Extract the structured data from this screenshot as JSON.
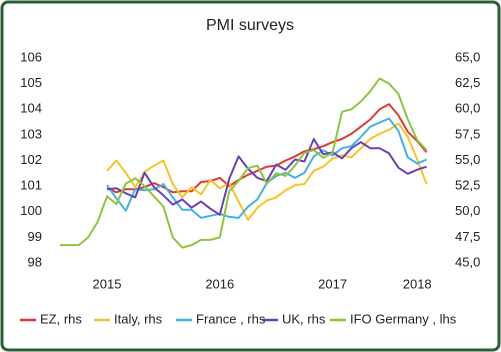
{
  "chart_data": {
    "type": "line",
    "title": "PMI surveys",
    "categories": [
      null,
      null,
      null,
      null,
      null,
      "2015",
      null,
      null,
      null,
      null,
      null,
      null,
      null,
      null,
      null,
      null,
      null,
      "2016",
      null,
      null,
      null,
      null,
      null,
      null,
      null,
      null,
      null,
      null,
      null,
      "2017",
      null,
      null,
      null,
      null,
      null,
      null,
      null,
      null,
      "2018",
      null
    ],
    "ylim": [
      98,
      106
    ],
    "yticks": [
      98,
      99,
      100,
      101,
      102,
      103,
      104,
      105,
      106
    ],
    "y2lim": [
      45,
      65
    ],
    "y2ticks": [
      {
        "value": 45,
        "label": "45,0"
      },
      {
        "value": 47.5,
        "label": "47,5"
      },
      {
        "value": 50,
        "label": "50,0"
      },
      {
        "value": 52.5,
        "label": "52,5"
      },
      {
        "value": 55,
        "label": "55,0"
      },
      {
        "value": 57.5,
        "label": "57,5"
      },
      {
        "value": 60,
        "label": "60,0"
      },
      {
        "value": 62.5,
        "label": "62,5"
      },
      {
        "value": 65,
        "label": "65,0"
      }
    ],
    "grid": false,
    "legend": "bottom",
    "series": [
      {
        "name": "EZ, rhs",
        "color": "#e03a2f",
        "axis": "y2",
        "values": [
          null,
          null,
          null,
          null,
          null,
          52.3,
          51.9,
          52.2,
          52.2,
          52.4,
          52.8,
          52.4,
          51.9,
          52.0,
          52.0,
          52.9,
          53.0,
          53.3,
          52.5,
          53.1,
          53.6,
          54.0,
          54.4,
          54.5,
          55.0,
          55.4,
          55.9,
          56.1,
          56.4,
          56.8,
          57.1,
          57.6,
          58.3,
          59.0,
          60.0,
          60.5,
          59.4,
          57.8,
          56.9,
          55.8
        ]
      },
      {
        "name": "Italy, rhs",
        "color": "#f7c325",
        "axis": "y2",
        "values": [
          null,
          null,
          null,
          null,
          null,
          54.0,
          55.0,
          53.8,
          52.4,
          53.9,
          54.5,
          55.0,
          52.7,
          51.4,
          52.4,
          51.7,
          53.1,
          52.3,
          52.8,
          51.0,
          49.2,
          50.4,
          51.1,
          51.4,
          52.1,
          52.6,
          52.7,
          54.0,
          54.4,
          55.2,
          55.5,
          55.3,
          56.2,
          57.1,
          57.6,
          58.0,
          58.6,
          57.3,
          55.1,
          52.7
        ]
      },
      {
        "name": "France , rhs",
        "color": "#3fb3e3",
        "axis": "y2",
        "values": [
          null,
          null,
          null,
          null,
          null,
          52.6,
          51.3,
          50.1,
          52.2,
          52.1,
          52.2,
          52.7,
          51.4,
          50.2,
          50.2,
          49.4,
          49.6,
          49.8,
          49.5,
          49.4,
          50.5,
          51.2,
          52.8,
          53.5,
          53.8,
          53.3,
          53.8,
          55.4,
          56.0,
          55.5,
          56.2,
          56.4,
          57.3,
          58.3,
          58.7,
          59.1,
          57.9,
          55.3,
          54.7,
          55.1
        ]
      },
      {
        "name": "UK, rhs",
        "color": "#6b3fb5",
        "axis": "y2",
        "values": [
          null,
          null,
          null,
          null,
          null,
          52.2,
          52.3,
          51.8,
          51.4,
          53.8,
          52.4,
          51.6,
          50.7,
          51.2,
          50.4,
          51.0,
          50.3,
          49.7,
          53.2,
          55.4,
          54.2,
          53.3,
          53.0,
          54.6,
          54.1,
          55.1,
          54.9,
          57.1,
          55.6,
          55.8,
          55.2,
          56.2,
          56.8,
          56.2,
          56.2,
          55.7,
          54.3,
          53.7,
          54.1,
          54.4
        ]
      },
      {
        "name": "IFO Germany , lhs",
        "color": "#8cc63f",
        "values": [
          98.7,
          98.7,
          98.7,
          99.0,
          99.6,
          100.6,
          100.3,
          101.1,
          101.3,
          101.0,
          100.6,
          100.2,
          99.0,
          98.6,
          98.7,
          98.9,
          98.9,
          99.0,
          100.8,
          101.2,
          101.7,
          101.8,
          101.1,
          101.5,
          101.4,
          101.8,
          102.3,
          102.4,
          102.1,
          102.3,
          103.9,
          104.0,
          104.3,
          104.7,
          105.2,
          105.0,
          104.6,
          103.6,
          102.8,
          102.4
        ]
      }
    ]
  }
}
